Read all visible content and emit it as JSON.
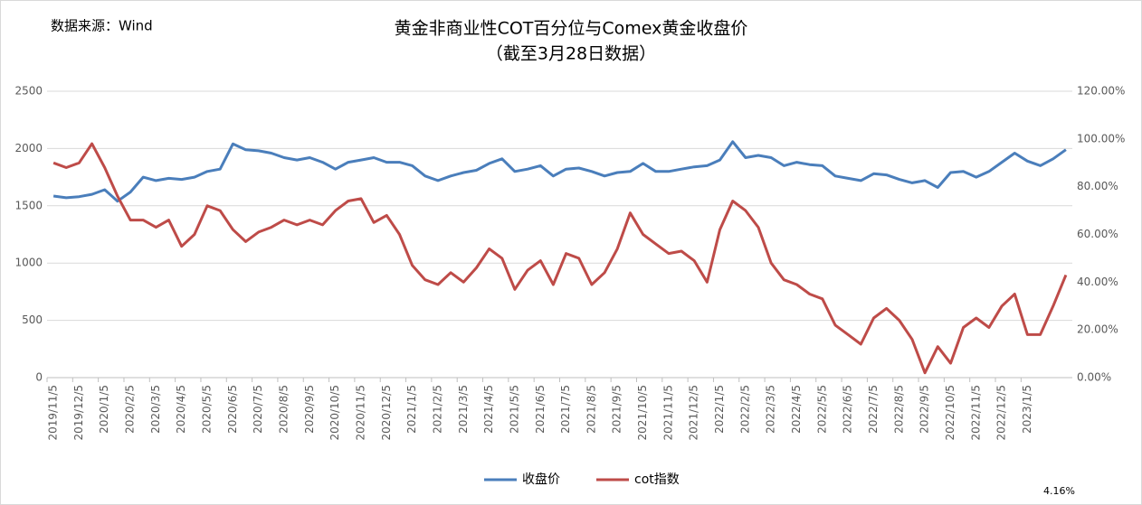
{
  "chart_data": {
    "type": "line",
    "title": "黄金非商业性COT百分位与Comex黄金收盘价",
    "subtitle": "（截至3月28日数据）",
    "source": "数据来源：Wind",
    "annotation": "4.16%",
    "categories": [
      "2019/11/5",
      null,
      "2019/12/5",
      null,
      "2020/1/5",
      null,
      "2020/2/5",
      null,
      "2020/3/5",
      null,
      "2020/4/5",
      null,
      "2020/5/5",
      null,
      "2020/6/5",
      null,
      "2020/7/5",
      null,
      "2020/8/5",
      null,
      "2020/9/5",
      null,
      "2020/10/5",
      null,
      "2020/11/5",
      null,
      "2020/12/5",
      null,
      "2021/1/5",
      null,
      "2021/2/5",
      null,
      "2021/3/5",
      null,
      "2021/4/5",
      null,
      "2021/5/5",
      null,
      "2021/6/5",
      null,
      "2021/7/5",
      null,
      "2021/8/5",
      null,
      "2021/9/5",
      null,
      "2021/10/5",
      null,
      "2021/11/5",
      null,
      "2021/12/5",
      null,
      "2022/1/5",
      null,
      "2022/2/5",
      null,
      "2022/3/5",
      null,
      "2022/4/5",
      null,
      "2022/5/5",
      null,
      "2022/6/5",
      null,
      "2022/7/5",
      null,
      "2022/8/5",
      null,
      "2022/9/5",
      null,
      "2022/10/5",
      null,
      "2022/11/5",
      null,
      "2022/12/5",
      null,
      "2023/1/5",
      null,
      null,
      null
    ],
    "series": [
      {
        "name": "收盘价",
        "color": "#4a7ebb",
        "values": [
          1585,
          1570,
          1580,
          1600,
          1640,
          1540,
          1620,
          1750,
          1720,
          1740,
          1730,
          1750,
          1800,
          1820,
          2040,
          1990,
          1980,
          1960,
          1920,
          1900,
          1920,
          1880,
          1820,
          1880,
          1900,
          1920,
          1880,
          1880,
          1850,
          1760,
          1720,
          1760,
          1790,
          1810,
          1870,
          1910,
          1800,
          1820,
          1850,
          1760,
          1820,
          1830,
          1800,
          1760,
          1790,
          1800,
          1870,
          1800,
          1800,
          1820,
          1840,
          1850,
          1900,
          2060,
          1920,
          1940,
          1920,
          1850,
          1880,
          1860,
          1850,
          1760,
          1740,
          1720,
          1780,
          1770,
          1730,
          1700,
          1720,
          1660,
          1790,
          1800,
          1750,
          1800,
          1880,
          1960,
          1890,
          1850,
          1910,
          1990
        ]
      },
      {
        "name": "cot指数",
        "color": "#be4b48",
        "axis": "y2",
        "values": [
          90,
          88,
          90,
          98,
          88,
          76,
          66,
          66,
          63,
          66,
          55,
          60,
          72,
          70,
          62,
          57,
          61,
          63,
          66,
          64,
          66,
          64,
          70,
          74,
          75,
          65,
          68,
          60,
          47,
          41,
          39,
          44,
          40,
          46,
          54,
          50,
          37,
          45,
          49,
          39,
          52,
          50,
          39,
          44,
          54,
          69,
          60,
          56,
          52,
          53,
          49,
          40,
          62,
          74,
          70,
          63,
          48,
          41,
          39,
          35,
          33,
          22,
          18,
          14,
          25,
          29,
          24,
          16,
          2,
          13,
          6,
          21,
          25,
          21,
          30,
          35,
          18,
          18,
          30,
          43
        ]
      }
    ],
    "ylim": [
      0,
      2500
    ],
    "yticks": [
      0,
      500,
      1000,
      1500,
      2000,
      2500
    ],
    "y2lim": [
      0,
      120
    ],
    "y2ticks": [
      {
        "value": 0,
        "label": "0.00%"
      },
      {
        "value": 20,
        "label": "20.00%"
      },
      {
        "value": 40,
        "label": "40.00%"
      },
      {
        "value": 60,
        "label": "60.00%"
      },
      {
        "value": 80,
        "label": "80.00%"
      },
      {
        "value": 100,
        "label": "100.00%"
      },
      {
        "value": 120,
        "label": "120.00%"
      }
    ],
    "grid": true,
    "legend": "bottom"
  }
}
